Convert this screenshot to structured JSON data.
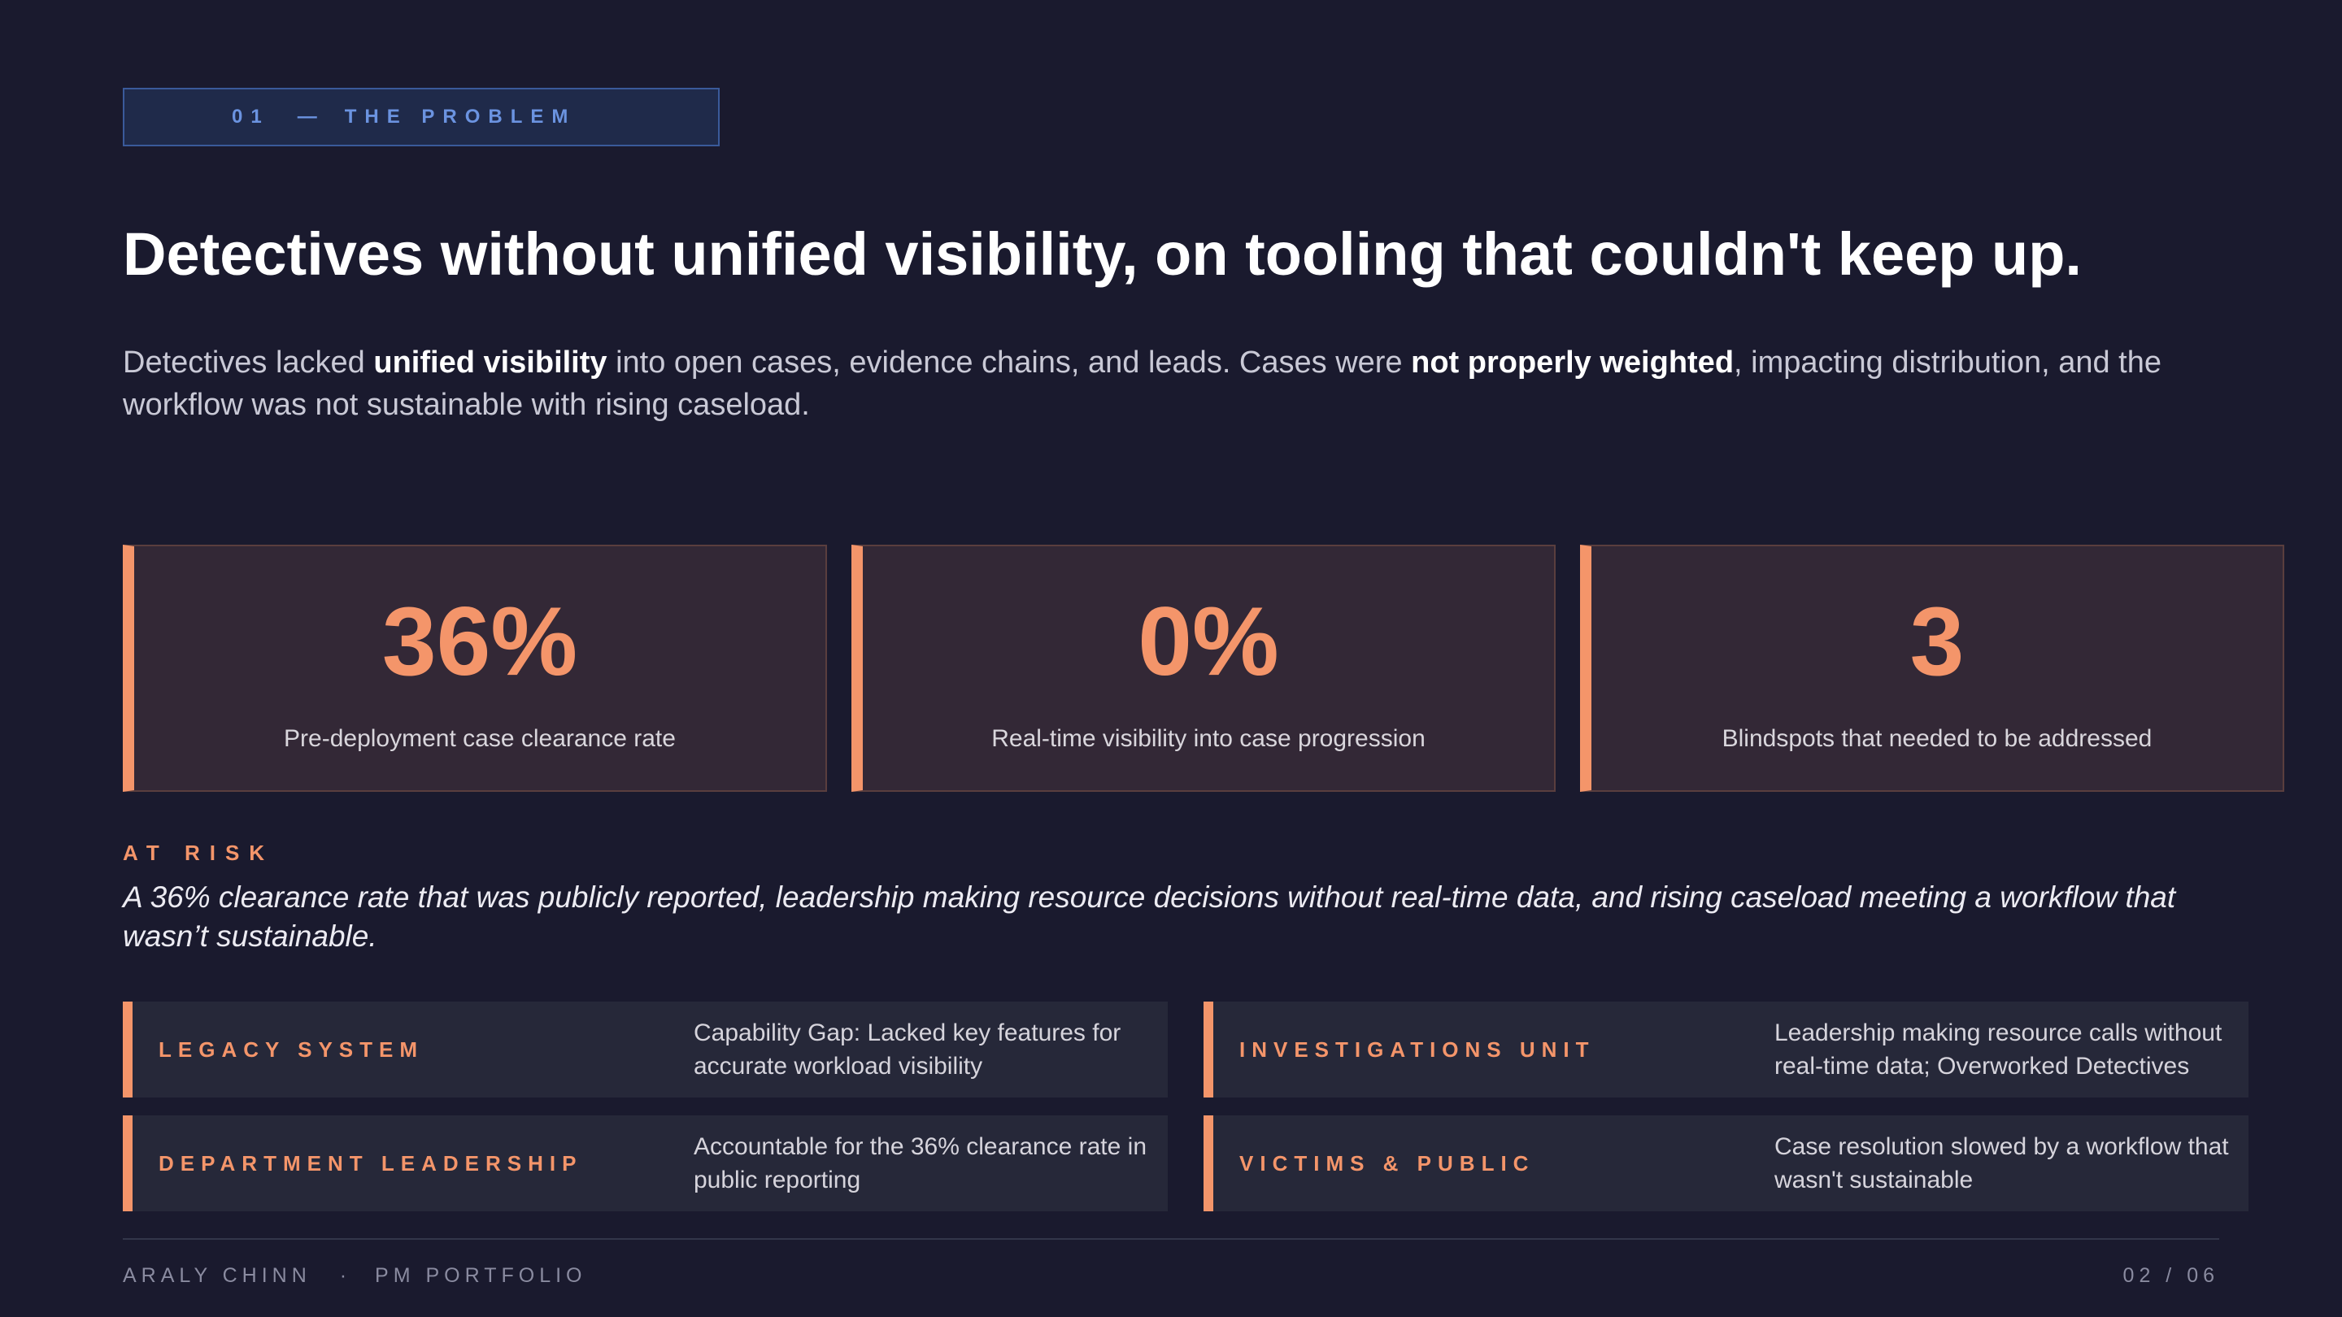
{
  "section": {
    "number": "01",
    "separator": "—",
    "label": "THE PROBLEM"
  },
  "title": "Detectives without unified visibility, on tooling that couldn't keep up.",
  "lead": {
    "p1": "Detectives lacked ",
    "b1": "unified visibility",
    "p2": " into open cases, evidence chains, and leads. Cases were ",
    "b2": "not properly weighted",
    "p3": ", impacting distribution, and the workflow was not sustainable with rising caseload."
  },
  "stats": [
    {
      "value": "36%",
      "label": "Pre-deployment case clearance rate"
    },
    {
      "value": "0%",
      "label": "Real-time visibility into case progression"
    },
    {
      "value": "3",
      "label": "Blindspots that needed to be addressed"
    }
  ],
  "risk": {
    "heading": "AT RISK",
    "text": "A 36% clearance rate that was publicly reported, leadership making resource decisions without real-time data, and rising caseload meeting a workflow that wasn’t sustainable."
  },
  "stakeholders": [
    {
      "label": "LEGACY SYSTEM",
      "desc": "Capability Gap: Lacked key features for accurate workload visibility"
    },
    {
      "label": "INVESTIGATIONS UNIT",
      "desc": "Leadership making resource calls without real-time data; Overworked Detectives"
    },
    {
      "label": "DEPARTMENT LEADERSHIP",
      "desc": "Accountable for the 36% clearance rate in public reporting"
    },
    {
      "label": "VICTIMS & PUBLIC",
      "desc": "Case resolution slowed by a workflow that wasn't sustainable"
    }
  ],
  "footer": {
    "name": "ARALY CHINN",
    "dot": "·",
    "portfolio": "PM PORTFOLIO",
    "page": "02 / 06"
  },
  "colors": {
    "background": "#1a1a2e",
    "accent": "#f4956a",
    "tag_blue": "#6b93e0"
  }
}
